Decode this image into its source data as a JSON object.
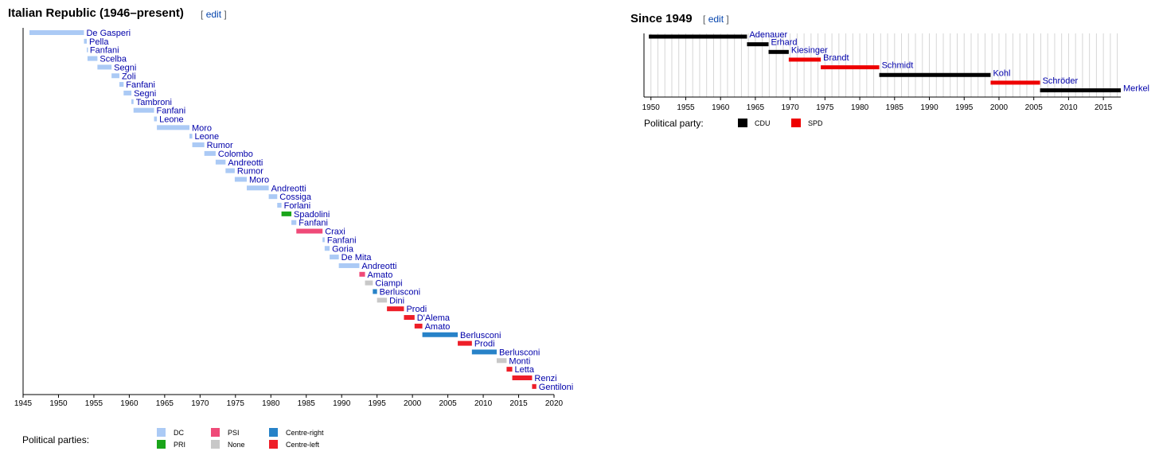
{
  "italy": {
    "title": "Italian Republic (1946–present)",
    "edit_open": "[",
    "edit_label": "edit",
    "edit_close": "]",
    "legend_caption": "Political parties:",
    "parties": [
      {
        "key": "DC",
        "label": "DC",
        "color": "#abcaf5"
      },
      {
        "key": "PRI",
        "label": "PRI",
        "color": "#1aa51a"
      },
      {
        "key": "PSI",
        "label": "PSI",
        "color": "#ef4a78"
      },
      {
        "key": "None",
        "label": "None",
        "color": "#c8c8c8"
      },
      {
        "key": "CR",
        "label": "Centre-right",
        "color": "#2782c8"
      },
      {
        "key": "CL",
        "label": "Centre-left",
        "color": "#ee1e28"
      }
    ]
  },
  "germany": {
    "title": "Since 1949",
    "edit_open": "[",
    "edit_label": "edit",
    "edit_close": "]",
    "legend_caption": "Political party:",
    "parties": [
      {
        "key": "CDU",
        "label": "CDU",
        "color": "#000000"
      },
      {
        "key": "SPD",
        "label": "SPD",
        "color": "#ee0000"
      }
    ]
  },
  "chart_data": [
    {
      "type": "timeline",
      "title": "Italian Republic (1946–present)",
      "xlim": [
        1945,
        2020
      ],
      "ticks": [
        1945,
        1950,
        1955,
        1960,
        1965,
        1970,
        1975,
        1980,
        1985,
        1990,
        1995,
        2000,
        2005,
        2010,
        2015,
        2020
      ],
      "grid": false,
      "legend": "bottom",
      "entries": [
        {
          "name": "De Gasperi",
          "start": 1945.9,
          "end": 1953.6,
          "party": "DC"
        },
        {
          "name": "Pella",
          "start": 1953.6,
          "end": 1954.0,
          "party": "DC"
        },
        {
          "name": "Fanfani",
          "start": 1954.0,
          "end": 1954.1,
          "party": "DC"
        },
        {
          "name": "Scelba",
          "start": 1954.1,
          "end": 1955.5,
          "party": "DC"
        },
        {
          "name": "Segni",
          "start": 1955.5,
          "end": 1957.5,
          "party": "DC"
        },
        {
          "name": "Zoli",
          "start": 1957.5,
          "end": 1958.6,
          "party": "DC"
        },
        {
          "name": "Fanfani",
          "start": 1958.6,
          "end": 1959.2,
          "party": "DC"
        },
        {
          "name": "Segni",
          "start": 1959.2,
          "end": 1960.3,
          "party": "DC"
        },
        {
          "name": "Tambroni",
          "start": 1960.3,
          "end": 1960.6,
          "party": "DC"
        },
        {
          "name": "Fanfani",
          "start": 1960.6,
          "end": 1963.5,
          "party": "DC"
        },
        {
          "name": "Leone",
          "start": 1963.5,
          "end": 1963.9,
          "party": "DC"
        },
        {
          "name": "Moro",
          "start": 1963.9,
          "end": 1968.5,
          "party": "DC"
        },
        {
          "name": "Leone",
          "start": 1968.5,
          "end": 1968.9,
          "party": "DC"
        },
        {
          "name": "Rumor",
          "start": 1968.9,
          "end": 1970.6,
          "party": "DC"
        },
        {
          "name": "Colombo",
          "start": 1970.6,
          "end": 1972.2,
          "party": "DC"
        },
        {
          "name": "Andreotti",
          "start": 1972.2,
          "end": 1973.6,
          "party": "DC"
        },
        {
          "name": "Rumor",
          "start": 1973.6,
          "end": 1974.9,
          "party": "DC"
        },
        {
          "name": "Moro",
          "start": 1974.9,
          "end": 1976.6,
          "party": "DC"
        },
        {
          "name": "Andreotti",
          "start": 1976.6,
          "end": 1979.7,
          "party": "DC"
        },
        {
          "name": "Cossiga",
          "start": 1979.7,
          "end": 1980.9,
          "party": "DC"
        },
        {
          "name": "Forlani",
          "start": 1980.9,
          "end": 1981.5,
          "party": "DC"
        },
        {
          "name": "Spadolini",
          "start": 1981.5,
          "end": 1982.9,
          "party": "PRI"
        },
        {
          "name": "Fanfani",
          "start": 1982.9,
          "end": 1983.6,
          "party": "DC"
        },
        {
          "name": "Craxi",
          "start": 1983.6,
          "end": 1987.3,
          "party": "PSI"
        },
        {
          "name": "Fanfani",
          "start": 1987.3,
          "end": 1987.6,
          "party": "DC"
        },
        {
          "name": "Goria",
          "start": 1987.6,
          "end": 1988.3,
          "party": "DC"
        },
        {
          "name": "De Mita",
          "start": 1988.3,
          "end": 1989.6,
          "party": "DC"
        },
        {
          "name": "Andreotti",
          "start": 1989.6,
          "end": 1992.5,
          "party": "DC"
        },
        {
          "name": "Amato",
          "start": 1992.5,
          "end": 1993.3,
          "party": "PSI"
        },
        {
          "name": "Ciampi",
          "start": 1993.3,
          "end": 1994.4,
          "party": "None"
        },
        {
          "name": "Berlusconi",
          "start": 1994.4,
          "end": 1995.0,
          "party": "CR"
        },
        {
          "name": "Dini",
          "start": 1995.0,
          "end": 1996.4,
          "party": "None"
        },
        {
          "name": "Prodi",
          "start": 1996.4,
          "end": 1998.8,
          "party": "CL"
        },
        {
          "name": "D'Alema",
          "start": 1998.8,
          "end": 2000.3,
          "party": "CL"
        },
        {
          "name": "Amato",
          "start": 2000.3,
          "end": 2001.4,
          "party": "CL"
        },
        {
          "name": "Berlusconi",
          "start": 2001.4,
          "end": 2006.4,
          "party": "CR"
        },
        {
          "name": "Prodi",
          "start": 2006.4,
          "end": 2008.4,
          "party": "CL"
        },
        {
          "name": "Berlusconi",
          "start": 2008.4,
          "end": 2011.9,
          "party": "CR"
        },
        {
          "name": "Monti",
          "start": 2011.9,
          "end": 2013.3,
          "party": "None"
        },
        {
          "name": "Letta",
          "start": 2013.3,
          "end": 2014.1,
          "party": "CL"
        },
        {
          "name": "Renzi",
          "start": 2014.1,
          "end": 2016.9,
          "party": "CL"
        },
        {
          "name": "Gentiloni",
          "start": 2016.9,
          "end": 2017.5,
          "party": "CL"
        }
      ]
    },
    {
      "type": "timeline",
      "title": "Since 1949",
      "xlim": [
        1949,
        2017.5
      ],
      "ticks": [
        1950,
        1955,
        1960,
        1965,
        1970,
        1975,
        1980,
        1985,
        1990,
        1995,
        2000,
        2005,
        2010,
        2015
      ],
      "grid": true,
      "legend": "bottom",
      "entries": [
        {
          "name": "Adenauer",
          "start": 1949.7,
          "end": 1963.8,
          "party": "CDU"
        },
        {
          "name": "Erhard",
          "start": 1963.8,
          "end": 1966.9,
          "party": "CDU"
        },
        {
          "name": "Kiesinger",
          "start": 1966.9,
          "end": 1969.8,
          "party": "CDU"
        },
        {
          "name": "Brandt",
          "start": 1969.8,
          "end": 1974.4,
          "party": "SPD"
        },
        {
          "name": "Schmidt",
          "start": 1974.4,
          "end": 1982.8,
          "party": "SPD"
        },
        {
          "name": "Kohl",
          "start": 1982.8,
          "end": 1998.8,
          "party": "CDU"
        },
        {
          "name": "Schröder",
          "start": 1998.8,
          "end": 2005.9,
          "party": "SPD"
        },
        {
          "name": "Merkel",
          "start": 2005.9,
          "end": 2017.5,
          "party": "CDU"
        }
      ]
    }
  ]
}
